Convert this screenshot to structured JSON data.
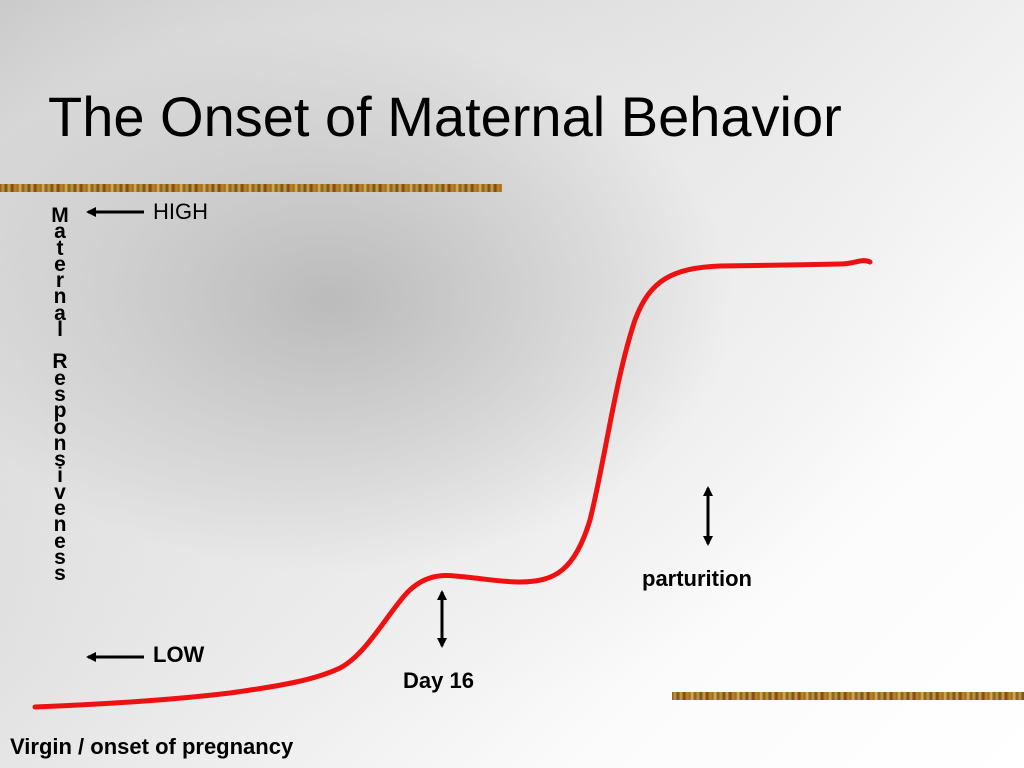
{
  "slide": {
    "title": "The Onset of Maternal Behavior",
    "y_axis_label": "Maternal Responsiveness",
    "high_label": "HIGH",
    "low_label": "LOW",
    "day16_label": "Day 16",
    "parturition_label": "parturition",
    "start_label": "Virgin / onset of pregnancy"
  },
  "colors": {
    "curve": "#ee1111",
    "text": "#000000",
    "accent_bar": "#b8862e"
  },
  "icons": {
    "high_arrow": "left-arrow-icon",
    "low_arrow": "left-arrow-icon",
    "day16_arrow": "double-headed-vertical-arrow-icon",
    "parturition_arrow": "double-headed-vertical-arrow-icon"
  }
}
